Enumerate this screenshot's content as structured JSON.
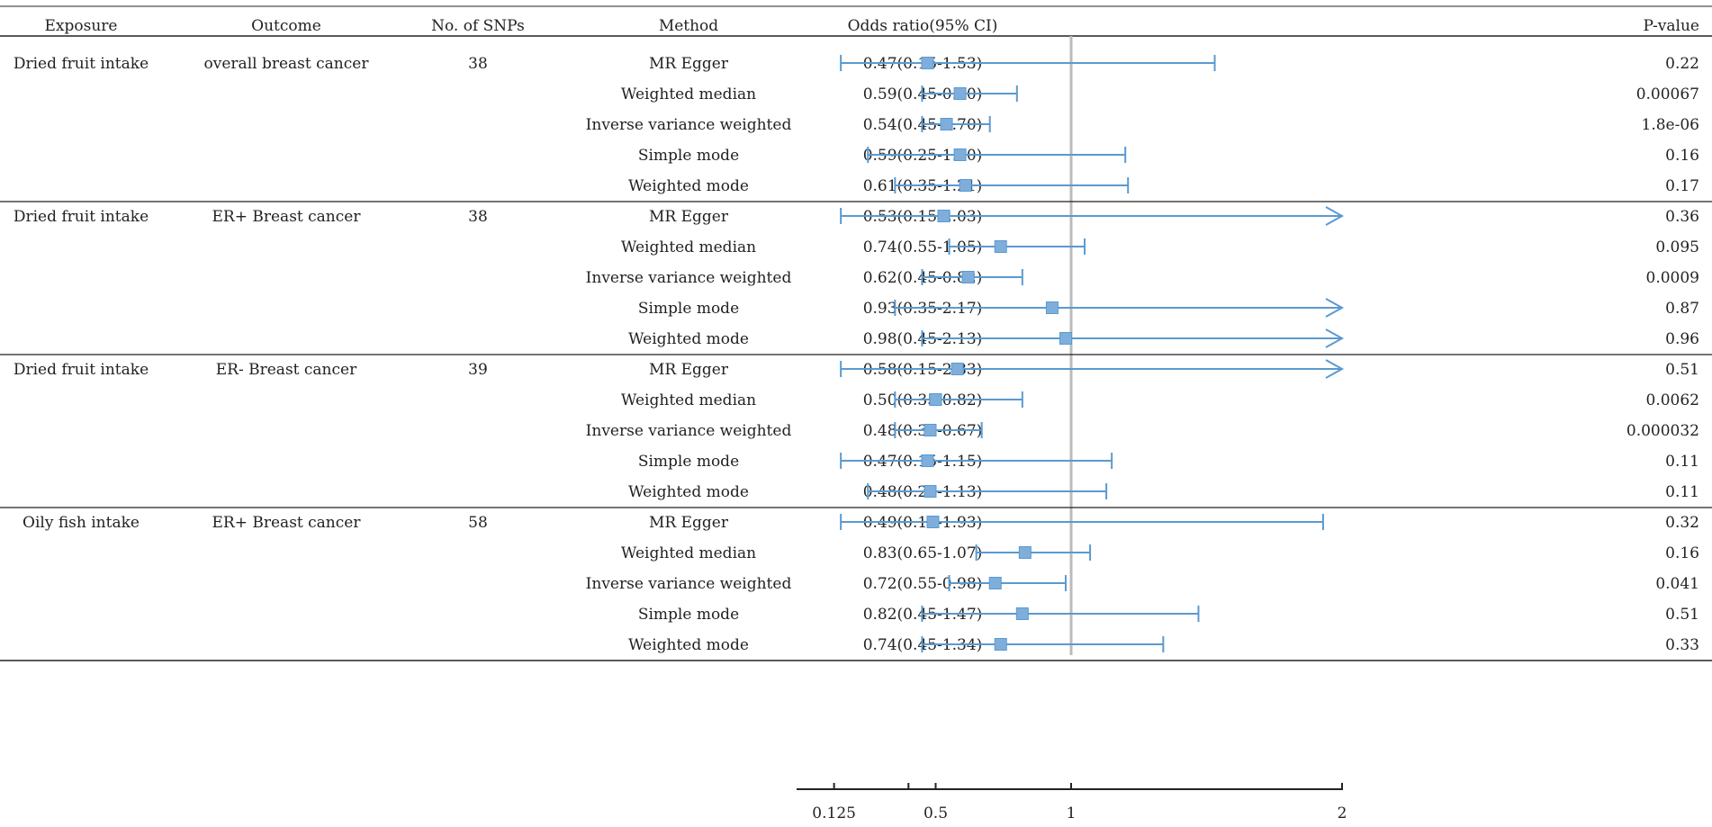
{
  "chart_data": {
    "type": "forest",
    "title": "",
    "headers": {
      "exposure": "Exposure",
      "outcome": "Outcome",
      "snps": "No. of SNPs",
      "method": "Method",
      "or": "Odds ratio(95% CI)",
      "p": "P-value"
    },
    "xaxis": {
      "ticks": [
        0.125,
        0.5,
        1,
        2
      ],
      "tick_labels": [
        "0.125",
        "0.5",
        "1",
        "2"
      ],
      "xlim": [
        0.0,
        2.0
      ],
      "reference_line": 1
    },
    "colors": {
      "marker": "#7FAEDB",
      "line": "#5A9AD0",
      "reference": "#BBBBBB",
      "rule": "#222222"
    },
    "groups": [
      {
        "exposure": "Dried fruit intake",
        "outcome": "overall breast cancer",
        "snps": "38",
        "rows": [
          {
            "method": "MR Egger",
            "or_text": "0.47(0.15-1.53)",
            "p": "0.22",
            "or": 0.47,
            "lo": 0.15,
            "hi": 1.53,
            "arrow": false
          },
          {
            "method": "Weighted median",
            "or_text": "0.59(0.45-0.80)",
            "p": "0.00067",
            "or": 0.59,
            "lo": 0.45,
            "hi": 0.8,
            "arrow": false
          },
          {
            "method": "Inverse variance weighted",
            "or_text": "0.54(0.45-0.70)",
            "p": "1.8e-06",
            "or": 0.54,
            "lo": 0.45,
            "hi": 0.7,
            "arrow": false
          },
          {
            "method": "Simple mode",
            "or_text": "0.59(0.25-1.20)",
            "p": "0.16",
            "or": 0.59,
            "lo": 0.25,
            "hi": 1.2,
            "arrow": false
          },
          {
            "method": "Weighted mode",
            "or_text": "0.61(0.35-1.21)",
            "p": "0.17",
            "or": 0.61,
            "lo": 0.35,
            "hi": 1.21,
            "arrow": false
          }
        ]
      },
      {
        "exposure": "Dried fruit intake",
        "outcome": "ER+ Breast cancer",
        "snps": "38",
        "rows": [
          {
            "method": "MR Egger",
            "or_text": "0.53(0.15-2.03)",
            "p": "0.36",
            "or": 0.53,
            "lo": 0.15,
            "hi": 2.03,
            "arrow": true
          },
          {
            "method": "Weighted median",
            "or_text": "0.74(0.55-1.05)",
            "p": "0.095",
            "or": 0.74,
            "lo": 0.55,
            "hi": 1.05,
            "arrow": false
          },
          {
            "method": "Inverse variance weighted",
            "or_text": "0.62(0.45-0.82)",
            "p": "0.0009",
            "or": 0.62,
            "lo": 0.45,
            "hi": 0.82,
            "arrow": false
          },
          {
            "method": "Simple mode",
            "or_text": "0.93(0.35-2.17)",
            "p": "0.87",
            "or": 0.93,
            "lo": 0.35,
            "hi": 2.17,
            "arrow": true
          },
          {
            "method": "Weighted mode",
            "or_text": "0.98(0.45-2.13)",
            "p": "0.96",
            "or": 0.98,
            "lo": 0.45,
            "hi": 2.13,
            "arrow": true
          }
        ]
      },
      {
        "exposure": "Dried fruit intake",
        "outcome": "ER- Breast cancer",
        "snps": "39",
        "rows": [
          {
            "method": "MR Egger",
            "or_text": "0.58(0.15-2.83)",
            "p": "0.51",
            "or": 0.58,
            "lo": 0.15,
            "hi": 2.83,
            "arrow": true
          },
          {
            "method": "Weighted median",
            "or_text": "0.50(0.35-0.82)",
            "p": "0.0062",
            "or": 0.5,
            "lo": 0.35,
            "hi": 0.82,
            "arrow": false
          },
          {
            "method": "Inverse variance weighted",
            "or_text": "0.48(0.35-0.67)",
            "p": "0.000032",
            "or": 0.48,
            "lo": 0.35,
            "hi": 0.67,
            "arrow": false
          },
          {
            "method": "Simple mode",
            "or_text": "0.47(0.15-1.15)",
            "p": "0.11",
            "or": 0.47,
            "lo": 0.15,
            "hi": 1.15,
            "arrow": false
          },
          {
            "method": "Weighted mode",
            "or_text": "0.48(0.25-1.13)",
            "p": "0.11",
            "or": 0.48,
            "lo": 0.25,
            "hi": 1.13,
            "arrow": false
          }
        ]
      },
      {
        "exposure": "Oily fish intake",
        "outcome": "ER+ Breast cancer",
        "snps": "58",
        "rows": [
          {
            "method": "MR Egger",
            "or_text": "0.49(0.15-1.93)",
            "p": "0.32",
            "or": 0.49,
            "lo": 0.15,
            "hi": 1.93,
            "arrow": false
          },
          {
            "method": "Weighted median",
            "or_text": "0.83(0.65-1.07)",
            "p": "0.16",
            "or": 0.83,
            "lo": 0.65,
            "hi": 1.07,
            "arrow": false
          },
          {
            "method": "Inverse variance weighted",
            "or_text": "0.72(0.55-0.98)",
            "p": "0.041",
            "or": 0.72,
            "lo": 0.55,
            "hi": 0.98,
            "arrow": false
          },
          {
            "method": "Simple mode",
            "or_text": "0.82(0.45-1.47)",
            "p": "0.51",
            "or": 0.82,
            "lo": 0.45,
            "hi": 1.47,
            "arrow": false
          },
          {
            "method": "Weighted mode",
            "or_text": "0.74(0.45-1.34)",
            "p": "0.33",
            "or": 0.74,
            "lo": 0.45,
            "hi": 1.34,
            "arrow": false
          }
        ]
      }
    ]
  }
}
